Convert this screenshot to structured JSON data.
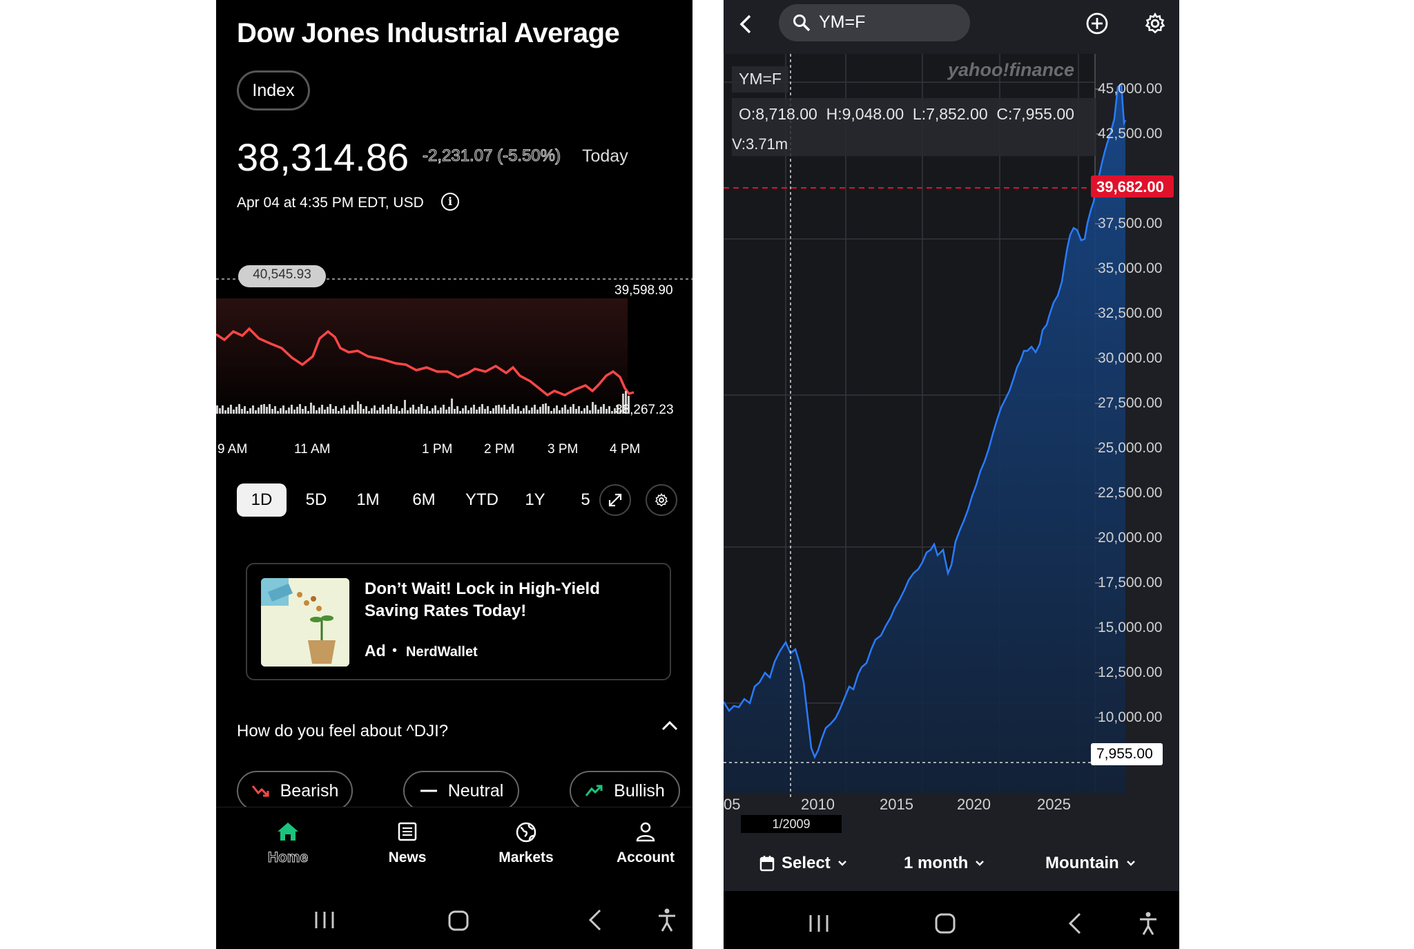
{
  "left": {
    "title": "Dow Jones Industrial Average",
    "type_chip": "Index",
    "price": "38,314.86",
    "change": "-2,231.07 (-5.50%)",
    "change_period": "Today",
    "asof": "Apr 04 at 4:35 PM EDT, USD",
    "chart": {
      "prev_close_label": "40,545.93",
      "high_label": "39,598.90",
      "low_label": "38,267.23",
      "x_labels": [
        "9 AM",
        "11 AM",
        "1 PM",
        "2 PM",
        "3 PM",
        "4 PM"
      ],
      "line_color": "#ff4d4d"
    },
    "ranges": [
      "1D",
      "5D",
      "1M",
      "6M",
      "YTD",
      "1Y",
      "5"
    ],
    "selected_range": "1D",
    "ad": {
      "headline_1": "Don’t Wait! Lock in High-Yield",
      "headline_2": "Saving Rates Today!",
      "ad_label": "Ad",
      "separator": "•",
      "sponsor": "NerdWallet"
    },
    "sentiment": {
      "question": "How do you feel about ^DJI?",
      "bearish": "Bearish",
      "neutral": "Neutral",
      "bullish": "Bullish"
    },
    "nav": {
      "home": "Home",
      "news": "News",
      "markets": "Markets",
      "account": "Account"
    }
  },
  "right": {
    "search_value": "YM=F",
    "watermark": "yahoo!finance",
    "symbol": "YM=F",
    "ohlc": "O:8,718.00  H:9,048.00  L:7,852.00  C:7,955.00",
    "volume": "V:3.71m",
    "y_labels": [
      "45,000.00",
      "42,500.00",
      "37,500.00",
      "35,000.00",
      "32,500.00",
      "30,000.00",
      "27,500.00",
      "25,000.00",
      "22,500.00",
      "20,000.00",
      "17,500.00",
      "15,000.00",
      "12,500.00",
      "10,000.00"
    ],
    "current_price_label": "39,682.00",
    "crosshair_price_label": "7,955.00",
    "x_labels": [
      "05",
      "2010",
      "2015",
      "2020",
      "2025"
    ],
    "crosshair_date": "1/2009",
    "controls": {
      "select": "Select",
      "interval": "1 month",
      "chart_type": "Mountain"
    },
    "accent_red": "#e0122b",
    "line_color": "#2a7bff"
  },
  "chart_data": [
    {
      "type": "line",
      "title": "",
      "x": [
        "9 AM",
        "11 AM",
        "1 PM",
        "2 PM",
        "3 PM",
        "4 PM"
      ],
      "series": [
        {
          "values": [
            39450,
            39520,
            39150,
            39050,
            38700,
            38300
          ]
        }
      ],
      "reference_lines": {
        "previous_close": 40545.93,
        "high": 39598.9,
        "low": 38267.23
      },
      "xlabel": "",
      "ylabel": ""
    },
    {
      "type": "area",
      "title": "",
      "x": [
        2005,
        2007,
        2009,
        2010,
        2012,
        2014,
        2016,
        2018,
        2019,
        2020,
        2021,
        2022,
        2023,
        2024,
        2025
      ],
      "series": [
        {
          "values": [
            10500,
            13800,
            7955,
            10300,
            13000,
            17500,
            17800,
            25000,
            26500,
            23000,
            35500,
            32000,
            34500,
            40000,
            44000
          ]
        }
      ],
      "ylim": [
        7000,
        46000
      ],
      "current_price": 39682.0,
      "xlabel": "",
      "ylabel": ""
    }
  ]
}
